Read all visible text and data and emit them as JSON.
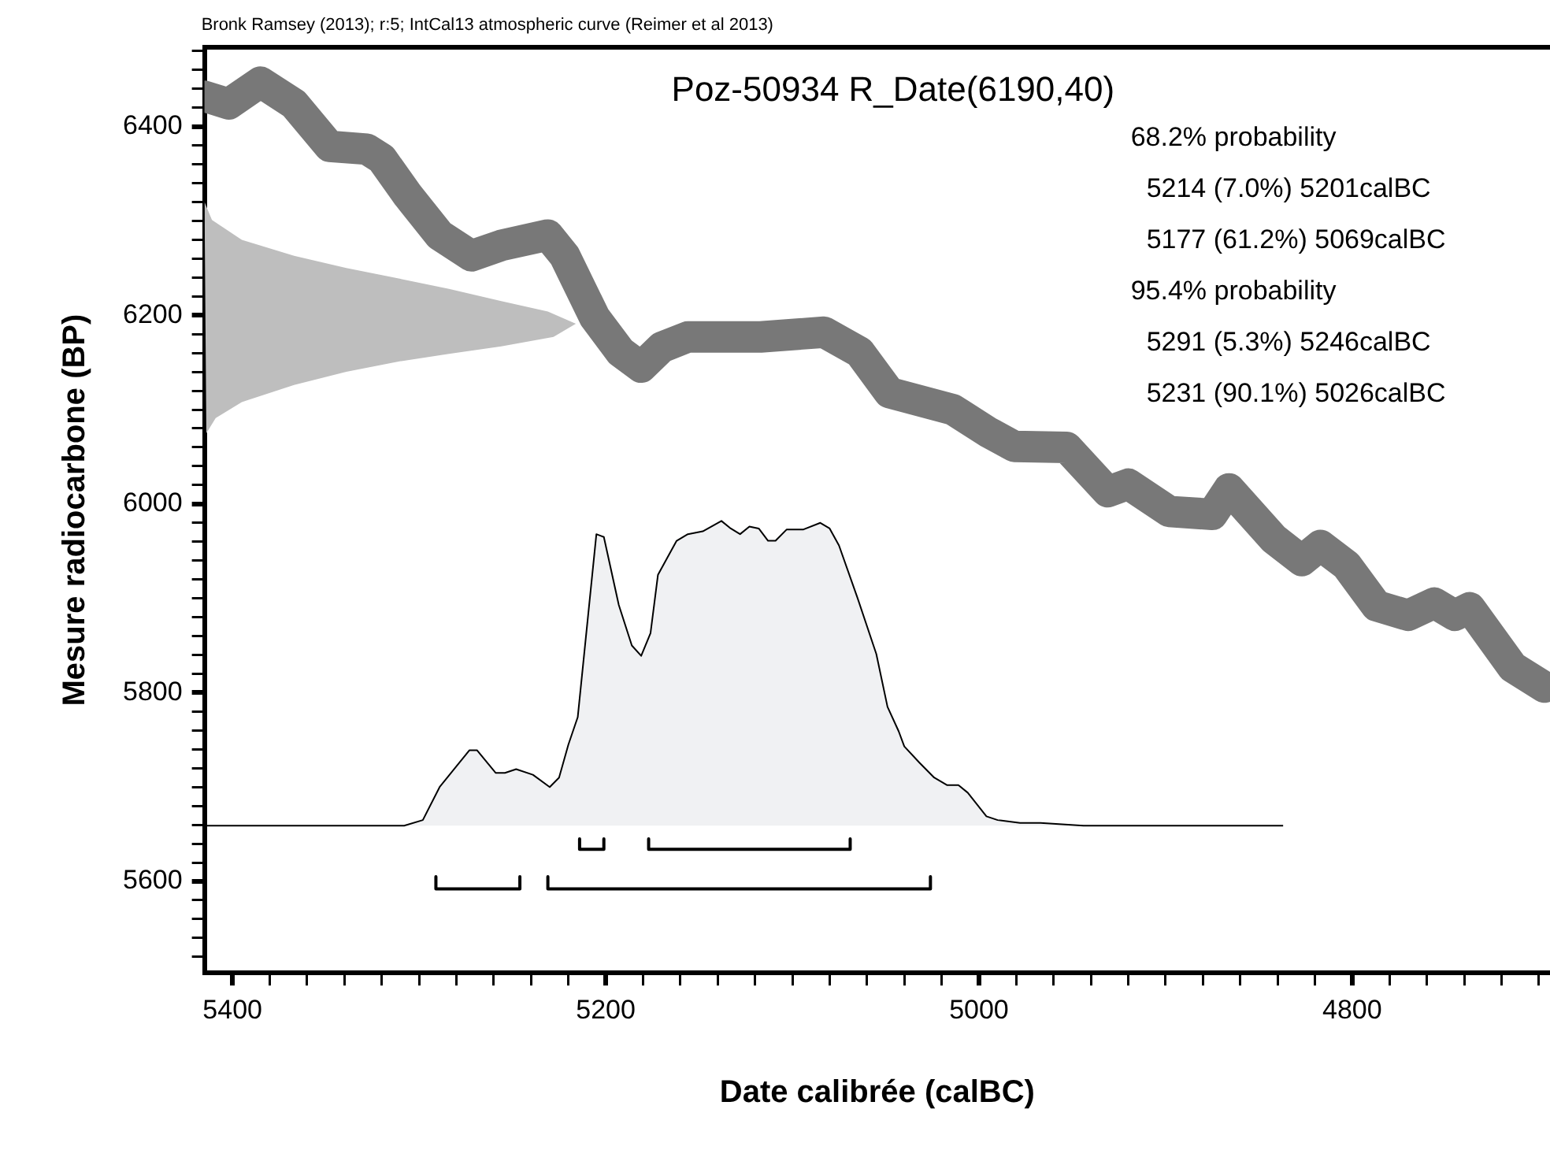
{
  "chart_data": {
    "type": "line",
    "title": "Poz-50934 R_Date(6190,40)",
    "xlabel": "Date calibrée (calBC)",
    "ylabel": "Mesure radiocarbone (BP)",
    "annotations": [
      "Bronk Ramsey (2013); r:5; IntCal13 atmospheric curve (Reimer et al 2013)",
      "68.2% probability",
      "5214 (7.0%) 5201calBC",
      "5177 (61.2%) 5069calBC",
      "95.4% probability",
      "5291 (5.3%) 5246calBC",
      "5231 (90.1%) 5026calBC"
    ],
    "xlim": [
      5415,
      4694
    ],
    "ylim": [
      5503,
      6484
    ],
    "xticks": [
      {
        "value": 5400,
        "label": "5400"
      },
      {
        "value": 5380,
        "label": null
      },
      {
        "value": 5360,
        "label": null
      },
      {
        "value": 5340,
        "label": null
      },
      {
        "value": 5320,
        "label": null
      },
      {
        "value": 5300,
        "label": null
      },
      {
        "value": 5280,
        "label": null
      },
      {
        "value": 5260,
        "label": null
      },
      {
        "value": 5240,
        "label": null
      },
      {
        "value": 5220,
        "label": null
      },
      {
        "value": 5200,
        "label": "5200"
      },
      {
        "value": 5180,
        "label": null
      },
      {
        "value": 5160,
        "label": null
      },
      {
        "value": 5140,
        "label": null
      },
      {
        "value": 5120,
        "label": null
      },
      {
        "value": 5100,
        "label": null
      },
      {
        "value": 5080,
        "label": null
      },
      {
        "value": 5060,
        "label": null
      },
      {
        "value": 5040,
        "label": null
      },
      {
        "value": 5020,
        "label": null
      },
      {
        "value": 5000,
        "label": "5000"
      },
      {
        "value": 4980,
        "label": null
      },
      {
        "value": 4960,
        "label": null
      },
      {
        "value": 4940,
        "label": null
      },
      {
        "value": 4920,
        "label": null
      },
      {
        "value": 4900,
        "label": null
      },
      {
        "value": 4880,
        "label": null
      },
      {
        "value": 4860,
        "label": null
      },
      {
        "value": 4840,
        "label": null
      },
      {
        "value": 4820,
        "label": null
      },
      {
        "value": 4800,
        "label": "4800"
      },
      {
        "value": 4780,
        "label": null
      },
      {
        "value": 4760,
        "label": null
      },
      {
        "value": 4740,
        "label": null
      },
      {
        "value": 4720,
        "label": null
      },
      {
        "value": 4700,
        "label": null
      }
    ],
    "yticks": [
      {
        "value": 5520,
        "label": null
      },
      {
        "value": 5540,
        "label": null
      },
      {
        "value": 5560,
        "label": null
      },
      {
        "value": 5580,
        "label": null
      },
      {
        "value": 5600,
        "label": "5600"
      },
      {
        "value": 5620,
        "label": null
      },
      {
        "value": 5640,
        "label": null
      },
      {
        "value": 5660,
        "label": null
      },
      {
        "value": 5680,
        "label": null
      },
      {
        "value": 5700,
        "label": null
      },
      {
        "value": 5720,
        "label": null
      },
      {
        "value": 5740,
        "label": null
      },
      {
        "value": 5760,
        "label": null
      },
      {
        "value": 5780,
        "label": null
      },
      {
        "value": 5800,
        "label": "5800"
      },
      {
        "value": 5820,
        "label": null
      },
      {
        "value": 5840,
        "label": null
      },
      {
        "value": 5860,
        "label": null
      },
      {
        "value": 5880,
        "label": null
      },
      {
        "value": 5900,
        "label": null
      },
      {
        "value": 5920,
        "label": null
      },
      {
        "value": 5940,
        "label": null
      },
      {
        "value": 5960,
        "label": null
      },
      {
        "value": 5980,
        "label": null
      },
      {
        "value": 6000,
        "label": "6000"
      },
      {
        "value": 6020,
        "label": null
      },
      {
        "value": 6040,
        "label": null
      },
      {
        "value": 6060,
        "label": null
      },
      {
        "value": 6080,
        "label": null
      },
      {
        "value": 6100,
        "label": null
      },
      {
        "value": 6120,
        "label": null
      },
      {
        "value": 6140,
        "label": null
      },
      {
        "value": 6160,
        "label": null
      },
      {
        "value": 6180,
        "label": null
      },
      {
        "value": 6200,
        "label": "6200"
      },
      {
        "value": 6220,
        "label": null
      },
      {
        "value": 6240,
        "label": null
      },
      {
        "value": 6260,
        "label": null
      },
      {
        "value": 6280,
        "label": null
      },
      {
        "value": 6300,
        "label": null
      },
      {
        "value": 6320,
        "label": null
      },
      {
        "value": 6340,
        "label": null
      },
      {
        "value": 6360,
        "label": null
      },
      {
        "value": 6380,
        "label": null
      },
      {
        "value": 6400,
        "label": "6400"
      },
      {
        "value": 6420,
        "label": null
      },
      {
        "value": 6440,
        "label": null
      },
      {
        "value": 6460,
        "label": null
      },
      {
        "value": 6480,
        "label": null
      }
    ],
    "grid": false,
    "legend": false,
    "marker": "none",
    "series": [
      {
        "color": "#787878",
        "x": [
          5415,
          5402,
          5385,
          5367,
          5348,
          5328,
          5320,
          5306,
          5289,
          5272,
          5256,
          5231,
          5222,
          5206,
          5192,
          5181,
          5170,
          5156,
          5137,
          5117,
          5083,
          5064,
          5048,
          5014,
          4995,
          4981,
          4953,
          4931,
          4920,
          4898,
          4875,
          4866,
          4842,
          4827,
          4817,
          4803,
          4787,
          4770,
          4756,
          4745,
          4737,
          4714,
          4697
        ],
        "values": [
          6432,
          6424,
          6447,
          6424,
          6379,
          6376,
          6366,
          6327,
          6285,
          6263,
          6274,
          6285,
          6263,
          6198,
          6161,
          6145,
          6166,
          6177,
          6177,
          6177,
          6182,
          6161,
          6118,
          6100,
          6076,
          6061,
          6060,
          6013,
          6021,
          5992,
          5989,
          6016,
          5963,
          5940,
          5956,
          5935,
          5892,
          5882,
          5895,
          5882,
          5890,
          5827,
          5806
        ]
      },
      {
        "type": "area",
        "color": "#bebebe",
        "x": [
          5415,
          5411,
          5395,
          5367,
          5339,
          5311,
          5284,
          5256,
          5231,
          5216,
          5228,
          5256,
          5284,
          5311,
          5339,
          5367,
          5395,
          5409,
          5414
        ],
        "values": [
          6320,
          6301,
          6280,
          6263,
          6250,
          6239,
          6228,
          6215,
          6204,
          6191,
          6177,
          6167,
          6159,
          6151,
          6140,
          6126,
          6108,
          6091,
          6075
        ]
      },
      {
        "type": "area",
        "color": "#f0f1f3",
        "x": [
          5415,
          5308,
          5298,
          5289,
          5273,
          5269,
          5259,
          5254,
          5248,
          5239,
          5230,
          5225,
          5220,
          5215,
          5205,
          5201,
          5193,
          5186,
          5181,
          5176,
          5172,
          5162,
          5156,
          5148,
          5138,
          5133,
          5128,
          5123,
          5118,
          5113,
          5109,
          5103,
          5094,
          5085,
          5080,
          5075,
          5065,
          5055,
          5049,
          5043,
          5040,
          5032,
          5024,
          5017,
          5011,
          5006,
          4996,
          4990,
          4978,
          4967,
          4944,
          4837
        ],
        "values": [
          5659,
          5659,
          5665,
          5700,
          5739,
          5739,
          5715,
          5715,
          5719,
          5713,
          5700,
          5710,
          5745,
          5774,
          5968,
          5965,
          5893,
          5850,
          5839,
          5863,
          5925,
          5961,
          5968,
          5971,
          5982,
          5974,
          5968,
          5976,
          5974,
          5961,
          5961,
          5973,
          5973,
          5980,
          5974,
          5956,
          5900,
          5841,
          5785,
          5759,
          5743,
          5726,
          5710,
          5702,
          5702,
          5694,
          5669,
          5665,
          5662,
          5662,
          5659,
          5659
        ]
      },
      {
        "color": "#000000",
        "x": [
          5214,
          5214,
          5201,
          5201
        ],
        "values": [
          5645,
          5634,
          5634,
          5645
        ]
      },
      {
        "color": "#000000",
        "x": [
          5177,
          5177,
          5069,
          5069
        ],
        "values": [
          5645,
          5634,
          5634,
          5645
        ]
      },
      {
        "color": "#000000",
        "x": [
          5291,
          5291,
          5246,
          5246
        ],
        "values": [
          5605,
          5592,
          5592,
          5605
        ]
      },
      {
        "color": "#000000",
        "x": [
          5231,
          5231,
          5026,
          5026
        ],
        "values": [
          5605,
          5592,
          5592,
          5605
        ]
      }
    ]
  }
}
